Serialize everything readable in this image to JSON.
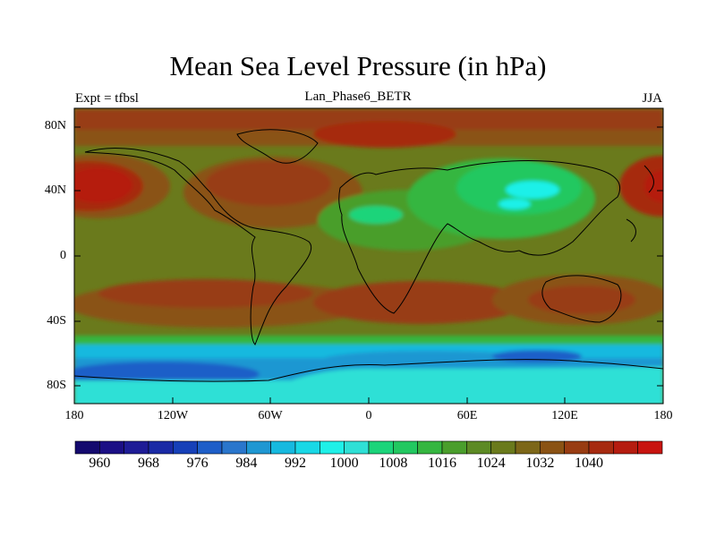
{
  "title": "Mean Sea Level Pressure (in hPa)",
  "subtitle_left": "Expt = tfbsl",
  "subtitle_center": "Lan_Phase6_BETR",
  "subtitle_right": "JJA",
  "lat_labels": [
    "80N",
    "40N",
    "0",
    "40S",
    "80S"
  ],
  "lon_labels": [
    "180",
    "120W",
    "60W",
    "0",
    "60E",
    "120E",
    "180"
  ],
  "colorbar": {
    "labels": [
      "960",
      "968",
      "976",
      "984",
      "992",
      "1000",
      "1008",
      "1016",
      "1024",
      "1032",
      "1040"
    ],
    "colors": [
      "#140a6e",
      "#1b0f85",
      "#1e1c96",
      "#1a2aa5",
      "#1640b8",
      "#1e5ec8",
      "#2a76cc",
      "#1f97d2",
      "#16b9df",
      "#19d8e6",
      "#1ff0e8",
      "#2fe0d6",
      "#1bd47a",
      "#22c860",
      "#35b640",
      "#4a9e2c",
      "#5c8a24",
      "#6a7a1c",
      "#7c6618",
      "#8a5214",
      "#983c12",
      "#a62a10",
      "#b51c10",
      "#c81410"
    ]
  },
  "field_colors": {
    "ocean_mid": "#6a7a1c",
    "high": "#a62a10",
    "subpolar_ring": "#16b9df",
    "antarctica": "#2fe0d6",
    "deep_low": "#1e5ec8",
    "asia_low": "#22c860",
    "asia_core": "#1ff0e8"
  }
}
